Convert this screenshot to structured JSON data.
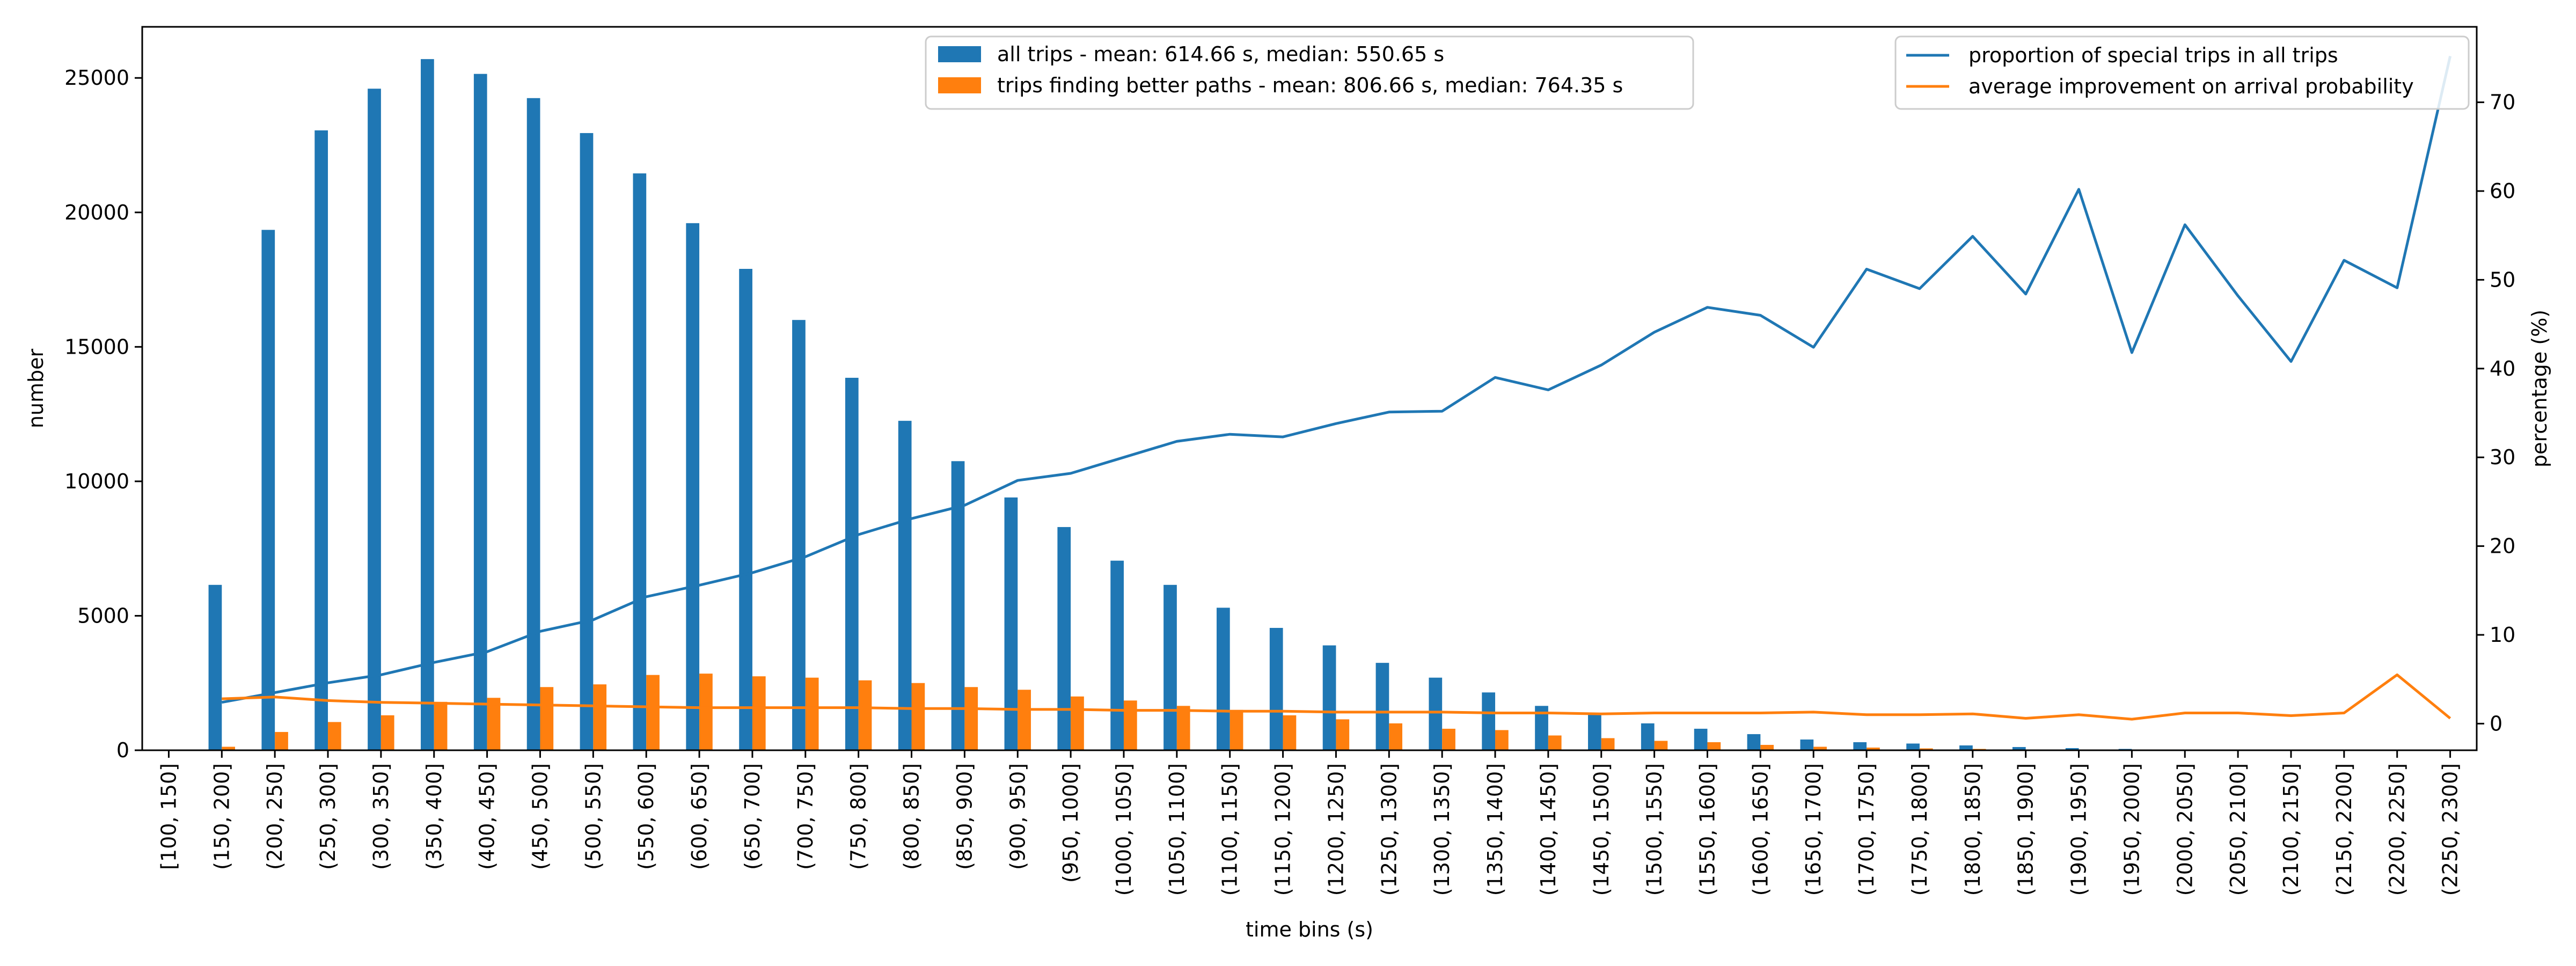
{
  "chart_data": {
    "type": "bar",
    "xlabel": "time bins (s)",
    "ylabel": "number",
    "ylabel_right": "percentage (%)",
    "ylim": [
      0,
      26900
    ],
    "ylim_right": [
      -3,
      78.5
    ],
    "yticks": [
      0,
      5000,
      10000,
      15000,
      20000,
      25000
    ],
    "yticks_right": [
      0,
      10,
      20,
      30,
      40,
      50,
      60,
      70
    ],
    "categories": [
      "[100, 150]",
      "(150, 200]",
      "(200, 250]",
      "(250, 300]",
      "(300, 350]",
      "(350, 400]",
      "(400, 450]",
      "(450, 500]",
      "(500, 550]",
      "(550, 600]",
      "(600, 650]",
      "(650, 700]",
      "(700, 750]",
      "(750, 800]",
      "(800, 850]",
      "(850, 900]",
      "(900, 950]",
      "(950, 1000]",
      "(1000, 1050]",
      "(1050, 1100]",
      "(1100, 1150]",
      "(1150, 1200]",
      "(1200, 1250]",
      "(1250, 1300]",
      "(1300, 1350]",
      "(1350, 1400]",
      "(1400, 1450]",
      "(1450, 1500]",
      "(1500, 1550]",
      "(1550, 1600]",
      "(1600, 1650]",
      "(1650, 1700]",
      "(1700, 1750]",
      "(1750, 1800]",
      "(1800, 1850]",
      "(1850, 1900]",
      "(1900, 1950]",
      "(1950, 2000]",
      "(2000, 2050]",
      "(2050, 2100]",
      "(2100, 2150]",
      "(2150, 2200]",
      "(2200, 2250]",
      "(2250, 2300]"
    ],
    "bar_series": [
      {
        "name": "all trips - mean: 614.66 s, median: 550.65 s",
        "color": "#1f77b4",
        "values": [
          0,
          6150,
          19350,
          23050,
          24600,
          25700,
          25150,
          24250,
          22950,
          21450,
          19600,
          17900,
          16000,
          13850,
          12250,
          10750,
          9400,
          8300,
          7050,
          6150,
          5300,
          4550,
          3900,
          3250,
          2700,
          2150,
          1650,
          1350,
          1000,
          800,
          600,
          400,
          300,
          250,
          180,
          120,
          80,
          50,
          30,
          20,
          15,
          10,
          8,
          5
        ]
      },
      {
        "name": "trips finding better paths - mean: 806.66 s, median: 764.35 s",
        "color": "#ff7f0e",
        "values": [
          0,
          130,
          680,
          1050,
          1300,
          1800,
          1950,
          2350,
          2450,
          2800,
          2850,
          2750,
          2700,
          2600,
          2500,
          2350,
          2250,
          2000,
          1850,
          1650,
          1500,
          1300,
          1150,
          1000,
          800,
          750,
          550,
          450,
          350,
          300,
          200,
          130,
          100,
          70,
          50,
          30,
          20,
          10,
          5,
          3,
          2,
          1,
          1,
          1
        ]
      }
    ],
    "line_series": [
      {
        "name": "proportion of special trips in all trips",
        "color": "#1f77b4",
        "values": [
          null,
          2.4,
          3.5,
          4.6,
          5.5,
          6.9,
          8.1,
          10.4,
          11.7,
          14.3,
          15.6,
          17.0,
          18.8,
          21.3,
          23.1,
          24.6,
          27.4,
          28.2,
          30.0,
          31.8,
          32.6,
          32.3,
          33.8,
          35.1,
          35.2,
          39.0,
          37.6,
          40.4,
          44.1,
          46.9,
          46.0,
          42.4,
          51.2,
          49.0,
          54.9,
          48.4,
          60.2,
          41.8,
          56.2,
          48.2,
          40.8,
          52.2,
          49.1,
          75.2
        ]
      },
      {
        "name": "average improvement on arrival probability",
        "color": "#ff7f0e",
        "values": [
          null,
          2.8,
          3.0,
          2.6,
          2.4,
          2.3,
          2.2,
          2.1,
          2.0,
          1.9,
          1.8,
          1.8,
          1.8,
          1.8,
          1.7,
          1.7,
          1.6,
          1.6,
          1.5,
          1.5,
          1.4,
          1.4,
          1.3,
          1.3,
          1.3,
          1.2,
          1.2,
          1.1,
          1.2,
          1.2,
          1.2,
          1.3,
          1.0,
          1.0,
          1.1,
          0.6,
          1.0,
          0.5,
          1.2,
          1.2,
          0.9,
          1.2,
          5.5,
          0.6
        ]
      }
    ],
    "legend_left_placement": "top-center",
    "legend_right_placement": "top-right",
    "grid": false
  }
}
